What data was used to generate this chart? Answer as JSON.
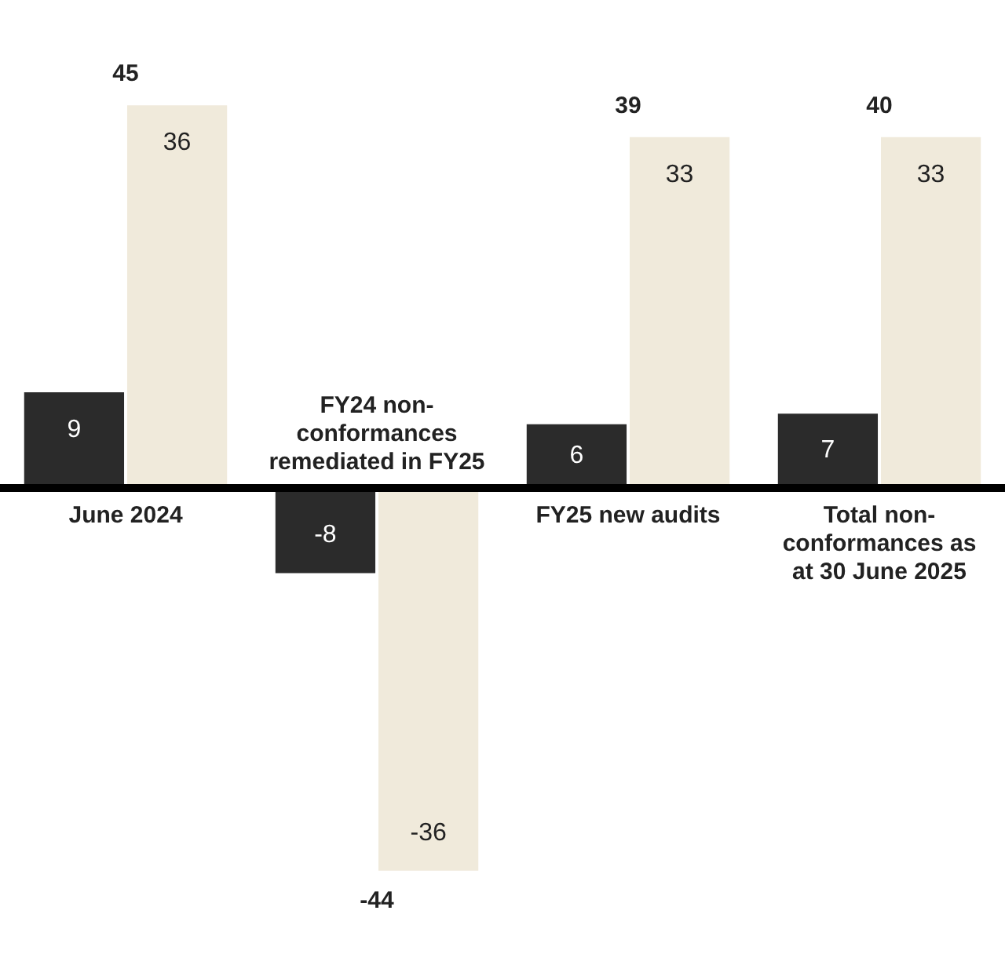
{
  "chart_data": {
    "type": "bar",
    "categories": [
      "June 2024",
      "FY24 non-conformances remediated in FY25",
      "FY25 new audits",
      "Total non-conformances as at 30 June 2025"
    ],
    "series": [
      {
        "color": "#2b2b2b",
        "values": [
          9,
          -8,
          6,
          7
        ]
      },
      {
        "color": "#f0eadb",
        "values": [
          36,
          -36,
          33,
          33
        ]
      }
    ],
    "data_labels": true,
    "totals": [
      "45",
      "-44",
      "39",
      "40"
    ]
  }
}
